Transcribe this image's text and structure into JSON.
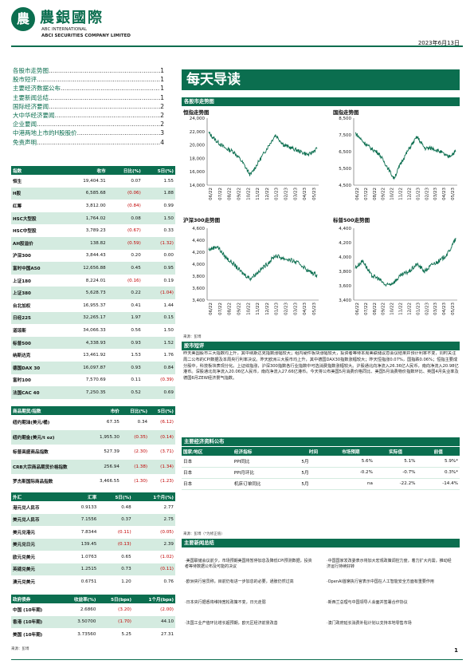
{
  "header": {
    "logo_glyph": "農",
    "company_cn": "農銀國際",
    "company_en1": "ABC INTERNATIONAL",
    "company_en2": "ABCI SECURITIES COMPANY LIMITED",
    "date": "2023年6月13日"
  },
  "toc": [
    {
      "title": "各股市走势图",
      "page": "1"
    },
    {
      "title": "股市短评",
      "page": "1"
    },
    {
      "title": "主要经济数据公布",
      "page": "1"
    },
    {
      "title": "主要新闻总结",
      "page": "1"
    },
    {
      "title": "国际经济要闻",
      "page": "2"
    },
    {
      "title": "大中华经济要闻",
      "page": "2"
    },
    {
      "title": "企业要闻",
      "page": "2"
    },
    {
      "title": "中港两地上市的H股股价",
      "page": "3"
    },
    {
      "title": "免责声明",
      "page": "4"
    }
  ],
  "title": "每天导读",
  "section_charts": "各股市走势图",
  "charts": [
    {
      "title": "恒指走势图",
      "yticks": [
        "24,000",
        "22,000",
        "20,000",
        "18,000",
        "16,000",
        "14,000"
      ],
      "xticks": [
        "06/22",
        "07/22",
        "08/22",
        "09/22",
        "10/22",
        "11/22",
        "12/22",
        "01/23",
        "02/23",
        "03/23",
        "04/23",
        "05/23"
      ]
    },
    {
      "title": "国指走势图",
      "yticks": [
        "8,500",
        "7,500",
        "6,500",
        "5,500",
        "4,500"
      ],
      "xticks": [
        "06/22",
        "07/22",
        "08/22",
        "09/22",
        "10/22",
        "11/22",
        "12/22",
        "01/23",
        "02/23",
        "03/23",
        "04/23",
        "05/23"
      ]
    },
    {
      "title": "沪深300走势图",
      "yticks": [
        "4,600",
        "4,400",
        "4,200",
        "4,000",
        "3,800",
        "3,600",
        "3,400"
      ],
      "xticks": [
        "06/22",
        "07/22",
        "08/22",
        "09/22",
        "10/22",
        "11/22",
        "12/22",
        "01/23",
        "02/23",
        "03/23",
        "04/23",
        "05/23"
      ]
    },
    {
      "title": "标普500走势图",
      "yticks": [
        "4,400",
        "4,200",
        "4,000",
        "3,800",
        "3,600",
        "3,400"
      ],
      "xticks": [
        "06/22",
        "07/22",
        "08/22",
        "09/22",
        "10/22",
        "11/22",
        "12/22",
        "01/23",
        "02/23",
        "03/23",
        "04/23",
        "05/23"
      ]
    }
  ],
  "chart_source": "来源：彭博",
  "index_table": {
    "headers": [
      "指数",
      "收市",
      "日比(%)",
      "5日(%)"
    ],
    "rows": [
      [
        "恒生",
        "19,404.31",
        "0.07",
        "1.55"
      ],
      [
        "H股",
        "6,585.68",
        "(0.06)",
        "1.88"
      ],
      [
        "红筹",
        "3,812.00",
        "(0.84)",
        "0.99"
      ],
      [
        "HSC大型股",
        "1,764.02",
        "0.08",
        "1.50"
      ],
      [
        "HSC中型股",
        "3,789.23",
        "(0.67)",
        "0.33"
      ],
      [
        "AH股溢价",
        "138.82",
        "(0.59)",
        "(1.32)"
      ],
      [
        "沪深300",
        "3,844.43",
        "0.20",
        "0.00"
      ],
      [
        "富时中国A50",
        "12,656.88",
        "0.45",
        "0.95"
      ],
      [
        "上证180",
        "8,224.01",
        "(0.16)",
        "0.19"
      ],
      [
        "上证380",
        "5,628.73",
        "0.22",
        "(1.04)"
      ],
      [
        "台北加权",
        "16,955.37",
        "0.41",
        "1.44"
      ],
      [
        "日经225",
        "32,265.17",
        "1.97",
        "0.15"
      ],
      [
        "道琼斯",
        "34,066.33",
        "0.56",
        "1.50"
      ],
      [
        "标普500",
        "4,338.93",
        "0.93",
        "1.52"
      ],
      [
        "纳斯达克",
        "13,461.92",
        "1.53",
        "1.76"
      ],
      [
        "德国DAX 30",
        "16,097.87",
        "0.93",
        "0.84"
      ],
      [
        "富时100",
        "7,570.69",
        "0.11",
        "(0.39)"
      ],
      [
        "法国CAC 40",
        "7,250.35",
        "0.52",
        "0.69"
      ]
    ]
  },
  "commodity_table": {
    "headers": [
      "商品期货/指数",
      "市价",
      "日比(%)",
      "5日(%)"
    ],
    "rows": [
      [
        "纽约期油(美元/桶)",
        "67.35",
        "0.34",
        "(6.12)"
      ],
      [
        "纽约期金(美元/t oz)",
        "1,955.30",
        "(0.35)",
        "(0.14)"
      ],
      [
        "标普高盛商品指数",
        "527.39",
        "(2.30)",
        "(3.71)"
      ],
      [
        "CRB大宗商品期货价格指数",
        "256.94",
        "(1.38)",
        "(1.34)"
      ],
      [
        "罗杰斯国际商品指数",
        "3,466.55",
        "(1.30)",
        "(1.23)"
      ]
    ]
  },
  "fx_table": {
    "headers": [
      "外汇",
      "汇率",
      "5日(%)",
      "1个月(%)"
    ],
    "rows": [
      [
        "港元兑人民币",
        "0.9133",
        "0.48",
        "2.77"
      ],
      [
        "美元兑人民币",
        "7.1556",
        "0.37",
        "2.75"
      ],
      [
        "美元兑港元",
        "7.8344",
        "(0.11)",
        "(0.05)"
      ],
      [
        "美元兑日元",
        "139.45",
        "(0.13)",
        "2.39"
      ],
      [
        "欧元兑美元",
        "1.0763",
        "0.65",
        "(1.02)"
      ],
      [
        "英磅兑美元",
        "1.2515",
        "0.73",
        "(0.11)"
      ],
      [
        "澳元兑美元",
        "0.6751",
        "1.20",
        "0.76"
      ]
    ]
  },
  "bond_table": {
    "headers": [
      "政府债券",
      "收益率(%)",
      "5日(bps)",
      "1个月(bps)"
    ],
    "rows": [
      [
        "中国 (10年期)",
        "2.6860",
        "(3.20)",
        "(2.00)"
      ],
      [
        "香港 (10年期)",
        "3.50700",
        "(1.70)",
        "44.10"
      ],
      [
        "美国 (10年期)",
        "3.73560",
        "5.25",
        "27.31"
      ]
    ]
  },
  "left_source": "来源：彭博",
  "comment": {
    "head": "股市短评",
    "text": "昨天美国股市三大指数均上升，其中纳斯达克指数涨幅较大；组内硬件板块涨幅较大，投资者等待本周美联储议息会议结果并预计利率不变，同时关注周二公布的CPI数据及本周央行利率决议。昨天欧洲三大股市均上升，其中德国DAX30指数涨幅较大；昨天恒指涨0.07%，国指跌0.06%；恒指主要成分股中，科技板块表现分化。上证综指涨，沪深300指数各行业指数中可选消费指数涨幅较大。沪股通北向净流入26.36亿人民币，南向净流入20.98亿港币。深股通北向净流入20.06亿人民币，南向净流入27.66亿港币。今天将公布美国5月消费价格同比、美国5月消费物价指数环比、英国4月失业率及德国6月ZEW经济景气指数。"
  },
  "events": {
    "head": "主要经济资料公布",
    "headers": [
      "国家/地区",
      "经济指标",
      "时间",
      "市场预期",
      "实际值",
      "前值"
    ],
    "rows": [
      [
        "日本",
        "PPI同比",
        "5月",
        "5.6%",
        "5.1%",
        "5.9%*"
      ],
      [
        "日本",
        "PPI月环比",
        "5月",
        "-0.2%",
        "-0.7%",
        "0.3%*"
      ],
      [
        "日本",
        "机床订单同比",
        "5月",
        "na",
        "-22.2%",
        "-14.4%"
      ]
    ],
    "source": "来源：彭博（*为修正值）"
  },
  "news": {
    "head": "主要新闻总结",
    "items": [
      "·美国联储会议前夕，市场预期美国将暂停加息及降低CPI预测数据，投资者等待数据公布及可能的决议",
      "·中国国家发改委表示将加大宏观政策调控力度，着力扩大内需，推动经济运行持续好转",
      "·欧洲央行官员称，目前仍有进一步加息的必要，通胀仍然过高",
      "·OpenAI首席执行官表示中国在人工智能安全方面有重要作用",
      "·日本央行据悉将维持宽松政策不变，日元走弱",
      "·新西兰总理与中国领导人会面并签署合作协议",
      "·法国工业产值环比增长超预期，欧元区经济前景改善",
      "·澳门政府延长消费补贴计划以支持本地零售市场"
    ]
  },
  "page_number": "1"
}
